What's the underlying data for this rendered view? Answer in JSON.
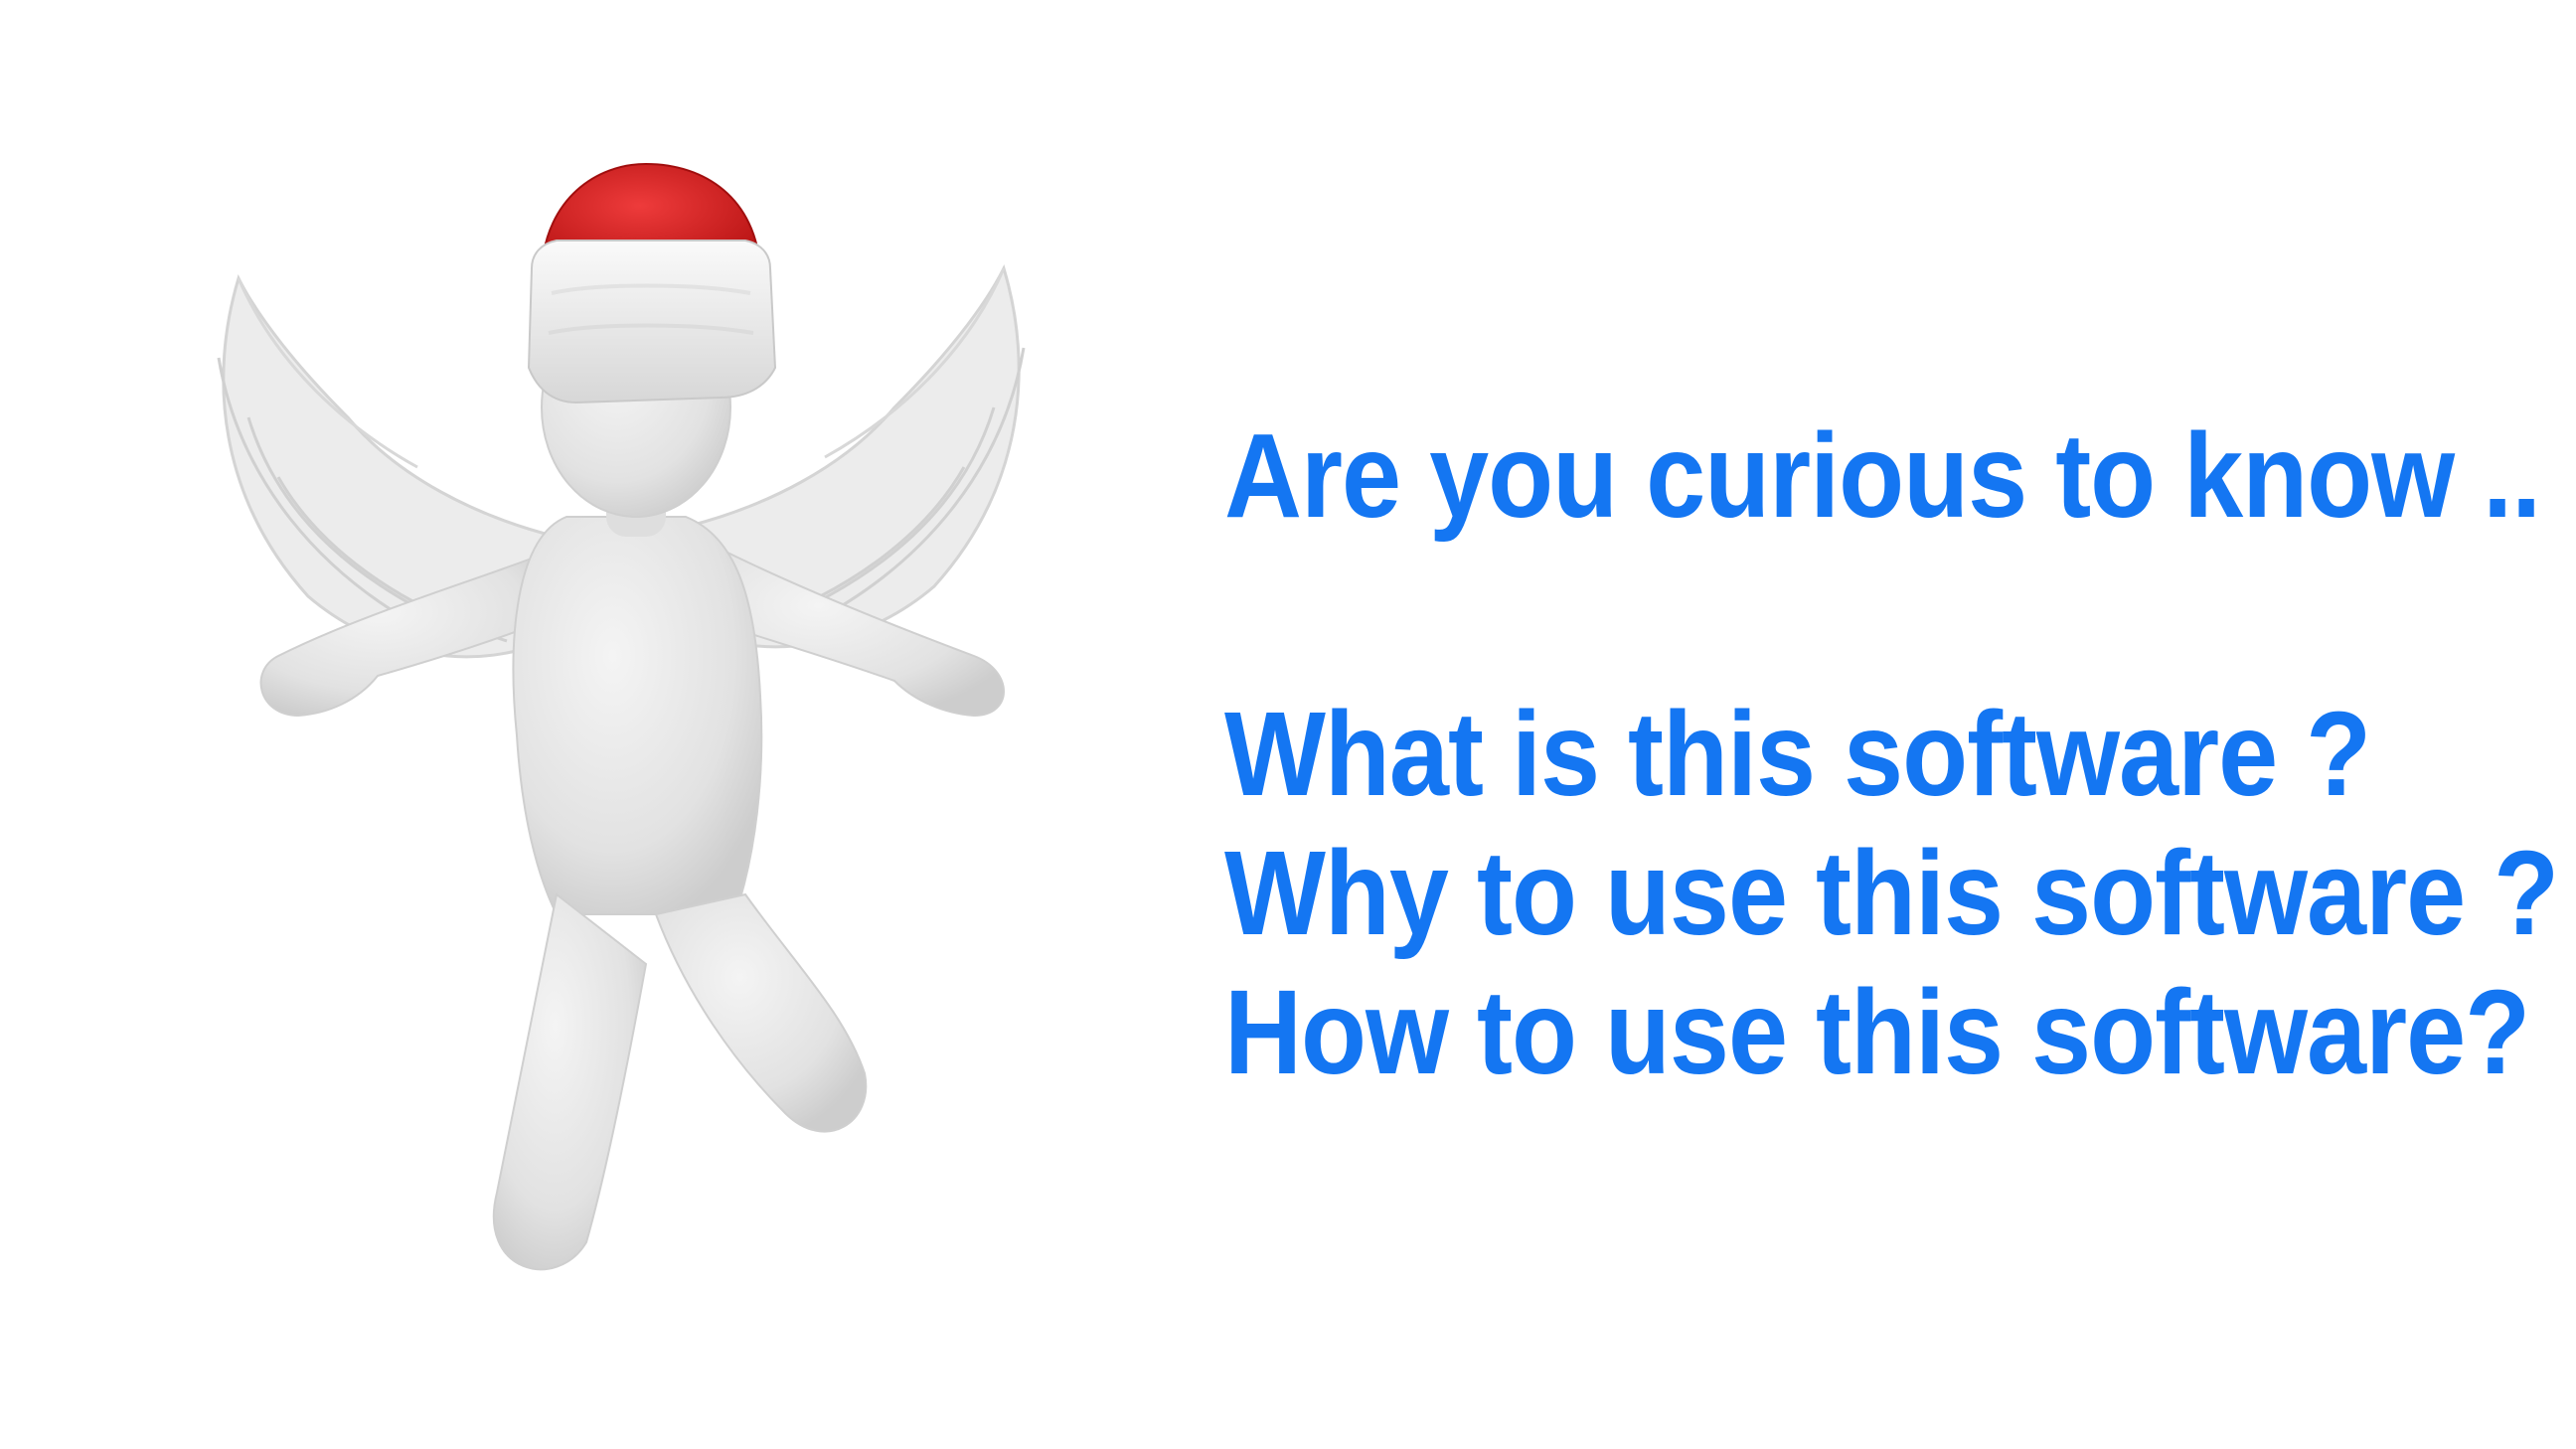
{
  "illustration": {
    "subject": "angel-figure-icon",
    "colors": {
      "body": "#e6e6e6",
      "body_shade": "#cfcfcf",
      "hat_red": "#d81e1e",
      "hat_fur": "#f0f0f0"
    }
  },
  "text": {
    "intro": "Are you curious to know ..",
    "questions": [
      "What is this software ?",
      "Why to use this software ?",
      "How to use this software?"
    ],
    "color": "#1476f2"
  }
}
